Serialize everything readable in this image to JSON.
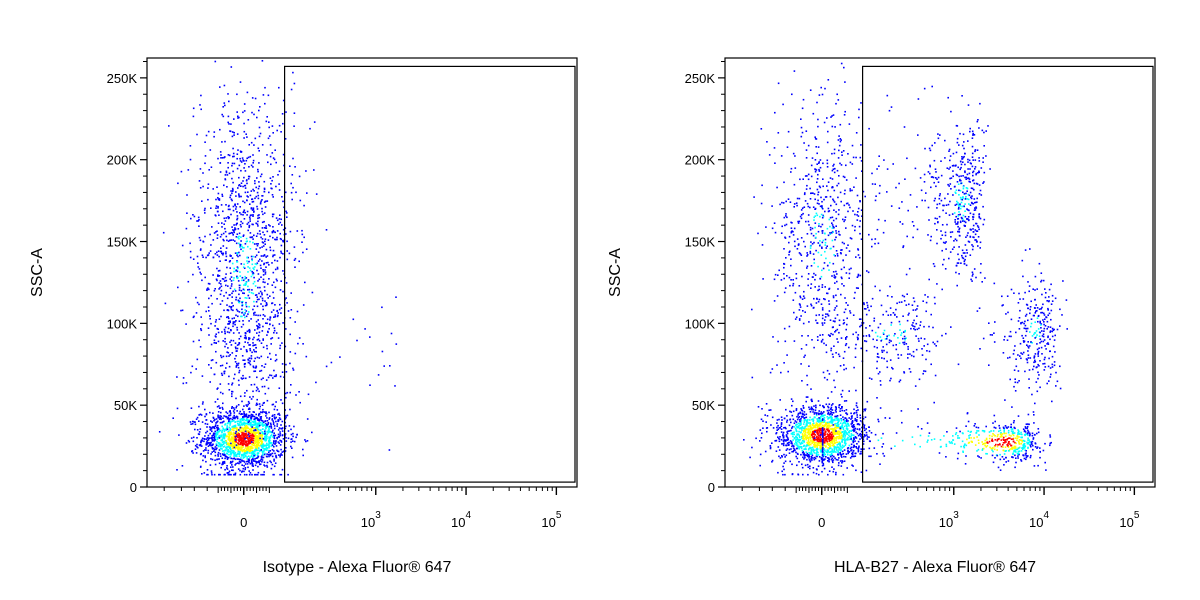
{
  "chart_data": [
    {
      "type": "scatter",
      "subtype": "flow-cytometry-density-dot-plot",
      "xlabel": "Isotype - Alexa Fluor® 647",
      "ylabel": "SSC-A",
      "x_scale": "biexponential",
      "x_ticks": [
        {
          "value": 0,
          "base": "0",
          "exp": ""
        },
        {
          "value": 1000,
          "base": "10",
          "exp": "3"
        },
        {
          "value": 10000,
          "base": "10",
          "exp": "4"
        },
        {
          "value": 100000,
          "base": "10",
          "exp": "5"
        }
      ],
      "y_ticks": [
        {
          "value": 0,
          "label": "0"
        },
        {
          "value": 50000,
          "label": "50K"
        },
        {
          "value": 100000,
          "label": "100K"
        },
        {
          "value": 150000,
          "label": "150K"
        },
        {
          "value": 200000,
          "label": "200K"
        },
        {
          "value": 250000,
          "label": "250K"
        }
      ],
      "ylim": [
        0,
        262144
      ],
      "gate": {
        "shape": "rectangle",
        "x_min": 160,
        "x_max": 180000,
        "y_min": 3000,
        "y_max": 257000
      },
      "populations": [
        {
          "x_center": 0,
          "x_spread": 150,
          "y_center": 30000,
          "y_spread": 9000,
          "count": 1600,
          "density": "high"
        },
        {
          "x_center": 0,
          "x_spread": 180,
          "y_center": 130000,
          "y_spread": 55000,
          "count": 1500,
          "density": "medium"
        },
        {
          "x_center": 800,
          "x_spread": 600,
          "y_center": 80000,
          "y_spread": 25000,
          "count": 25,
          "density": "low"
        }
      ],
      "colors": {
        "low": "#0000ff",
        "mid": "#00ffff",
        "midhigh": "#ffff00",
        "high": "#ff0000"
      }
    },
    {
      "type": "scatter",
      "subtype": "flow-cytometry-density-dot-plot",
      "xlabel": "HLA-B27 - Alexa Fluor® 647",
      "ylabel": "SSC-A",
      "x_scale": "biexponential",
      "x_ticks": [
        {
          "value": 0,
          "base": "0",
          "exp": ""
        },
        {
          "value": 1000,
          "base": "10",
          "exp": "3"
        },
        {
          "value": 10000,
          "base": "10",
          "exp": "4"
        },
        {
          "value": 100000,
          "base": "10",
          "exp": "5"
        }
      ],
      "y_ticks": [
        {
          "value": 0,
          "label": "0"
        },
        {
          "value": 50000,
          "label": "50K"
        },
        {
          "value": 100000,
          "label": "100K"
        },
        {
          "value": 150000,
          "label": "150K"
        },
        {
          "value": 200000,
          "label": "200K"
        },
        {
          "value": 250000,
          "label": "250K"
        }
      ],
      "ylim": [
        0,
        262144
      ],
      "gate": {
        "shape": "rectangle",
        "x_min": 160,
        "x_max": 180000,
        "y_min": 3000,
        "y_max": 257000
      },
      "populations": [
        {
          "x_center": 0,
          "x_spread": 160,
          "y_center": 32000,
          "y_spread": 9000,
          "count": 1500,
          "density": "high"
        },
        {
          "x_center": 0,
          "x_spread": 180,
          "y_center": 150000,
          "y_spread": 45000,
          "count": 700,
          "density": "medium"
        },
        {
          "x_center": 400,
          "x_spread": 200,
          "y_center": 95000,
          "y_spread": 15000,
          "count": 250,
          "density": "medium"
        },
        {
          "x_center": 1200,
          "x_spread": 500,
          "y_center": 175000,
          "y_spread": 25000,
          "count": 500,
          "density": "medium"
        },
        {
          "x_center": 3500,
          "x_spread": 2500,
          "y_center": 28000,
          "y_spread": 6000,
          "count": 500,
          "density": "high"
        },
        {
          "x_center": 8000,
          "x_spread": 3000,
          "y_center": 95000,
          "y_spread": 18000,
          "count": 300,
          "density": "medium"
        }
      ],
      "colors": {
        "low": "#0000ff",
        "mid": "#00ffff",
        "midhigh": "#ffff00",
        "high": "#ff0000"
      }
    }
  ]
}
